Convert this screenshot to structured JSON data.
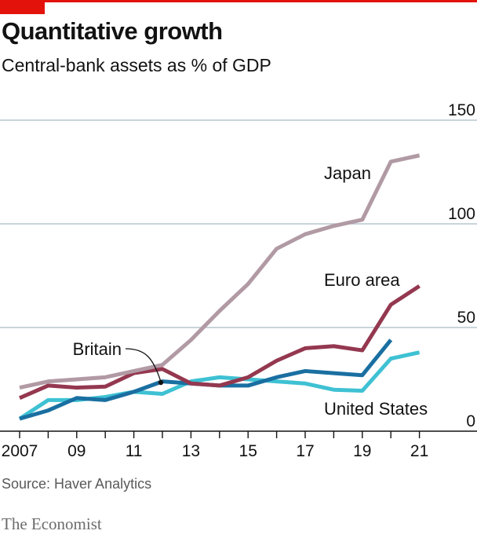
{
  "header": {
    "title": "Quantitative growth",
    "subtitle": "Central-bank assets as % of GDP"
  },
  "footer": {
    "source": "Source: Haver Analytics",
    "brand": "The Economist"
  },
  "colors": {
    "accent": "#e3120b",
    "grid": "#b7c6cf",
    "axis": "#121212",
    "japan": "#b19aa4",
    "euro_area": "#94384f",
    "britain": "#1a6fa1",
    "united_states": "#3ec1d3"
  },
  "chart_data": {
    "type": "line",
    "title": "Quantitative growth",
    "subtitle": "Central-bank assets as % of GDP",
    "x": [
      2007,
      2008,
      2009,
      2010,
      2011,
      2012,
      2013,
      2014,
      2015,
      2016,
      2017,
      2018,
      2019,
      2020,
      2021
    ],
    "x_tick_values": [
      2007,
      2009,
      2011,
      2013,
      2015,
      2017,
      2019,
      2021
    ],
    "x_tick_labels": [
      "2007",
      "09",
      "11",
      "13",
      "15",
      "17",
      "19",
      "21"
    ],
    "y_tick_values": [
      0,
      50,
      100,
      150
    ],
    "y_tick_labels": [
      "0",
      "50",
      "100",
      "150"
    ],
    "ylim": [
      0,
      150
    ],
    "xlim": [
      2007,
      2022
    ],
    "grid": true,
    "series": [
      {
        "name": "Japan",
        "color_key": "japan",
        "x": [
          2007,
          2008,
          2009,
          2010,
          2011,
          2012,
          2013,
          2014,
          2015,
          2016,
          2017,
          2018,
          2019,
          2020,
          2021
        ],
        "values": [
          21,
          24,
          25,
          26,
          29,
          32,
          44,
          58,
          71,
          88,
          95,
          99,
          102,
          130,
          133
        ]
      },
      {
        "name": "Euro area",
        "color_key": "euro_area",
        "x": [
          2007,
          2008,
          2009,
          2010,
          2011,
          2012,
          2013,
          2014,
          2015,
          2016,
          2017,
          2018,
          2019,
          2020,
          2021
        ],
        "values": [
          16,
          22,
          21,
          21.5,
          28,
          30,
          23,
          22,
          26,
          34,
          40,
          41,
          39,
          61,
          70
        ]
      },
      {
        "name": "Britain",
        "color_key": "britain",
        "x": [
          2007,
          2008,
          2009,
          2010,
          2011,
          2012,
          2013,
          2014,
          2015,
          2016,
          2017,
          2018,
          2019,
          2020
        ],
        "values": [
          6,
          10,
          16,
          15,
          19,
          24,
          23,
          22,
          22,
          26,
          29,
          28,
          27,
          44
        ]
      },
      {
        "name": "United States",
        "color_key": "united_states",
        "x": [
          2007,
          2008,
          2009,
          2010,
          2011,
          2012,
          2013,
          2014,
          2015,
          2016,
          2017,
          2018,
          2019,
          2020,
          2021
        ],
        "values": [
          6,
          15,
          15,
          16.5,
          19,
          18,
          24,
          26,
          25,
          24,
          23,
          20,
          19.5,
          35,
          38
        ]
      }
    ],
    "annotations": [
      {
        "series": "Japan",
        "text": "Japan"
      },
      {
        "series": "Euro area",
        "text": "Euro area"
      },
      {
        "series": "Britain",
        "text": "Britain"
      },
      {
        "series": "United States",
        "text": "United States"
      }
    ]
  }
}
